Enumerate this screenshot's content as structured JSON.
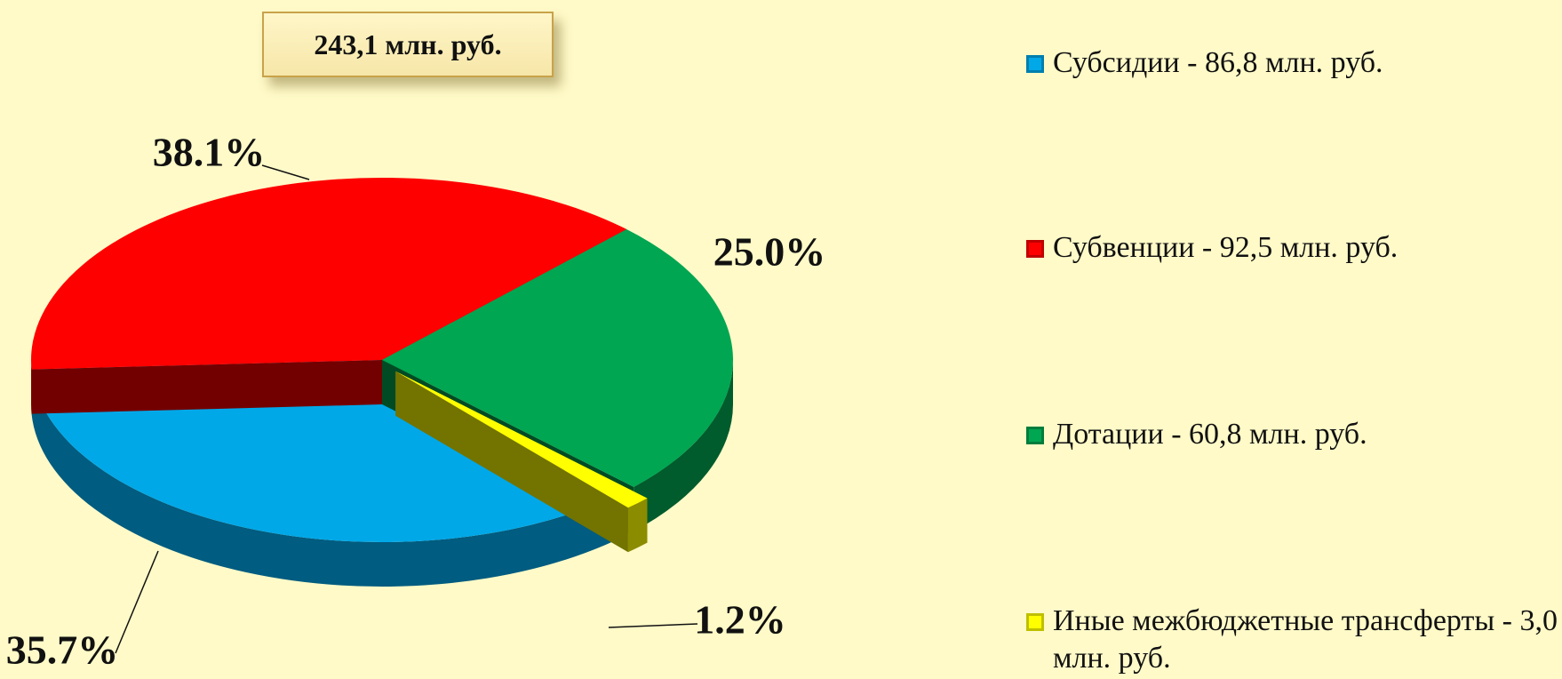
{
  "chart_data": {
    "type": "pie",
    "title": "243,1 млн. руб.",
    "categories": [
      "Субсидии - 86,8 млн. руб.",
      "Субвенции - 92,5 млн. руб.",
      "Дотации - 60,8 млн. руб.",
      "Иные межбюджетные трансферты - 3,0 млн. руб."
    ],
    "values": [
      35.7,
      38.1,
      25.0,
      1.2
    ],
    "value_labels": [
      "35.7%",
      "38.1%",
      "25.0%",
      "1.2%"
    ],
    "colors": [
      "#00a8e8",
      "#ff0000",
      "#00a651",
      "#ffff00"
    ],
    "exploded": [
      false,
      false,
      false,
      true
    ]
  }
}
